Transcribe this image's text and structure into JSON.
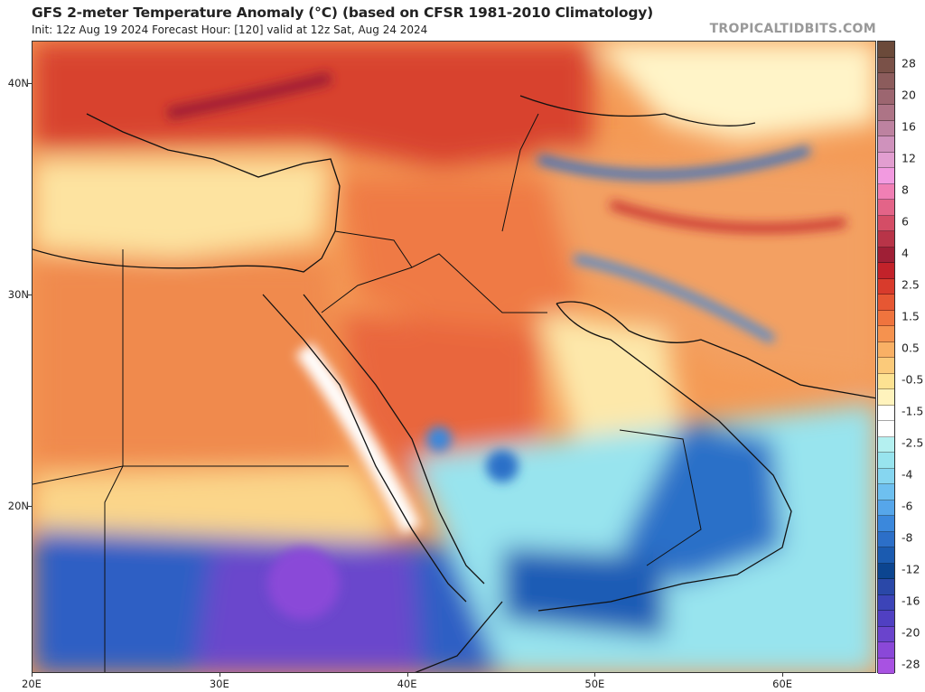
{
  "header": {
    "title": "GFS 2-meter Temperature Anomaly (°C) (based on CFSR 1981-2010 Climatology)",
    "subtitle": "Init: 12z Aug 19 2024   Forecast Hour: [120]   valid at 12z Sat, Aug 24 2024",
    "brand": "TROPICALTIDBITS.COM"
  },
  "map": {
    "lat_labels": [
      "40N",
      "30N",
      "20N"
    ],
    "lon_labels": [
      "20E",
      "30E",
      "40E",
      "50E",
      "60E"
    ],
    "lat_values": [
      40,
      30,
      20
    ],
    "lon_values": [
      20,
      30,
      40,
      50,
      60
    ],
    "lat_range": [
      12.1,
      42.0
    ],
    "lon_range": [
      20,
      65
    ]
  },
  "colorbar": {
    "labels": [
      "28",
      "20",
      "16",
      "12",
      "8",
      "6",
      "4",
      "2.5",
      "1.5",
      "0.5",
      "-0.5",
      "-1.5",
      "-2.5",
      "-4",
      "-6",
      "-8",
      "-12",
      "-16",
      "-20",
      "-28"
    ],
    "colors": [
      "#6b4a3a",
      "#7a5148",
      "#8c5c5c",
      "#9c6670",
      "#ad7486",
      "#bd82a0",
      "#cf92bc",
      "#e29ed0",
      "#f29ae0",
      "#f07fb4",
      "#e36488",
      "#d44d66",
      "#b83448",
      "#9f1f36",
      "#c2222a",
      "#d83b2c",
      "#e65733",
      "#ef743e",
      "#f5924f",
      "#f9b065",
      "#fbca7a",
      "#fde292",
      "#fff3bd",
      "#ffffff",
      "#ffffff",
      "#b4f0f0",
      "#98e4ee",
      "#86d6f0",
      "#6ec0f0",
      "#56a6ea",
      "#3b88dc",
      "#2c6fc8",
      "#1b5bb0",
      "#0c4590",
      "#2a48a8",
      "#3c44b8",
      "#5040c2",
      "#6a44cc",
      "#8a48d8",
      "#a852e2"
    ]
  }
}
